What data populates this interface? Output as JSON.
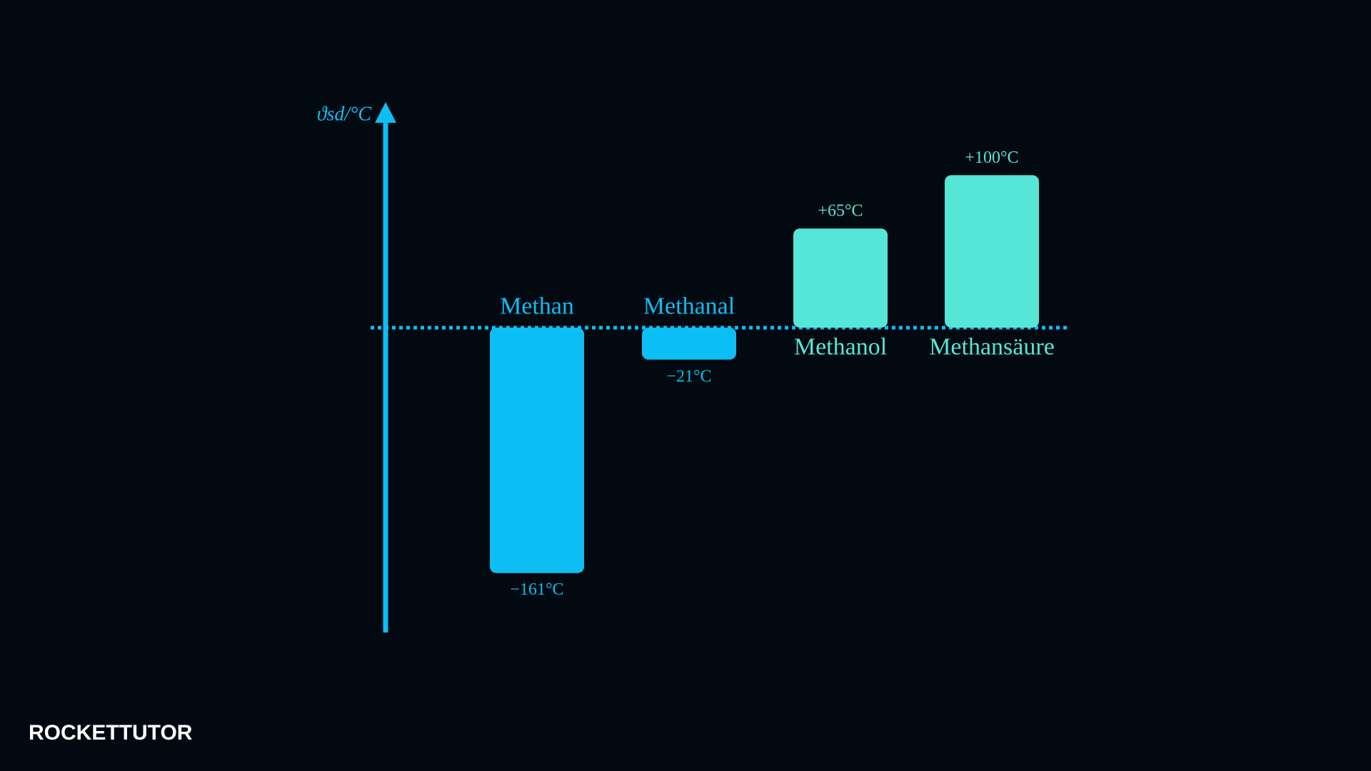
{
  "chart_data": {
    "type": "bar",
    "y_label": "ϑsd/°C",
    "categories": [
      "Methan",
      "Methanal",
      "Methanol",
      "Methansäure"
    ],
    "values": [
      -161,
      -21,
      65,
      100
    ],
    "value_labels": [
      "−161°C",
      "−21°C",
      "+65°C",
      "+100°C"
    ],
    "colors": [
      "#0bbff5",
      "#0bbff5",
      "#55e6d8",
      "#55e6d8"
    ],
    "axis_color": "#0bbff5",
    "ylim": [
      -200,
      140
    ]
  },
  "logo": "ROCKETTUTOR"
}
